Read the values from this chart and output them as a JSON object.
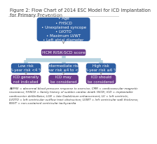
{
  "title": "Figure 2: Flow Chart of 2014 ESC Model for ICD Implantation\nfor Primary Prevention",
  "title_fontsize": 4.8,
  "top_box_text": "HCM RISK-SCD variables:\n• Age\n• FHSCD\n• Unexplained syncope\n• LVOTO\n• Maximum LVWT\n• Left atrial diameter\n• NSVT",
  "middle_box_text": "HCM RISK-SCD score",
  "low_risk_text": "Low risk\n5-year risk <4 %",
  "inter_risk_text": "Intermediate risk\n5-year risk ≥4 to <6 %",
  "high_risk_text": "High risk\n5-year risk ≥6 %",
  "low_icd_text": "ICD generally\nnot indicated",
  "inter_icd_text": "ICD may\nbe considered",
  "high_icd_text": "ICD should\nbe considered",
  "footnote": "ABPRE = abnormal blood pressure response to exercise; CMR = cardiovascular magnetic\nresonance; FHSCD = family history of sudden cardiac death (SCD); ICD = implantable\ncardioverter defibrillator; LGE = late Gadolinium enhancement; LV = left ventricle;\nLVOTO = left ventricular outflow tract obstruction; LVWT = left ventricular wall thickness;\nNSVT = non-sustained ventricular tachycardia",
  "top_box_color": "#2e5fa3",
  "middle_box_color": "#6b3a8a",
  "risk_box_color": "#2e5fa3",
  "icd_box_color": "#6b3a8a",
  "connector_color": "#b8d4e0",
  "bg_color": "#ffffff",
  "text_color": "#ffffff",
  "title_color": "#404040",
  "footnote_color": "#333333",
  "divider_color": "#cccccc"
}
